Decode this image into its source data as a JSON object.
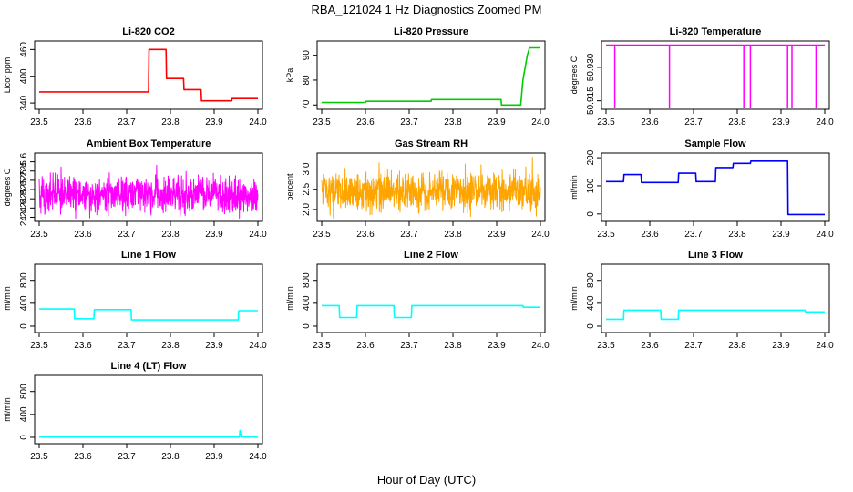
{
  "figure": {
    "title": "RBA_121024  1 Hz Diagnostics Zoomed PM",
    "xlabel": "Hour of Day (UTC)"
  },
  "chart_data": [
    {
      "type": "line",
      "title": "Li-820 CO2",
      "xlabel": "",
      "ylabel": "Licor ppm",
      "color": "#ff0000",
      "xlim": [
        23.5,
        24.0
      ],
      "ylim": [
        330,
        475
      ],
      "xticks": [
        "23.5",
        "23.6",
        "23.7",
        "23.8",
        "23.9",
        "24.0"
      ],
      "yticks": [
        340,
        400,
        460
      ],
      "x": [
        23.5,
        23.75,
        23.751,
        23.79,
        23.791,
        23.83,
        23.831,
        23.87,
        23.871,
        23.94,
        23.941,
        24.0
      ],
      "y": [
        365,
        365,
        460,
        460,
        395,
        395,
        370,
        370,
        345,
        345,
        350,
        350
      ],
      "series": [
        {
          "x": [
            23.5,
            23.75,
            23.751,
            23.79,
            23.791,
            23.83,
            23.831,
            23.87,
            23.871,
            23.94,
            23.941,
            24.0
          ],
          "y": [
            365,
            365,
            460,
            460,
            395,
            395,
            370,
            370,
            345,
            345,
            350,
            350
          ]
        }
      ]
    },
    {
      "type": "line",
      "title": "Li-820 Pressure",
      "xlabel": "",
      "ylabel": "kPa",
      "color": "#00cc00",
      "xlim": [
        23.5,
        24.0
      ],
      "ylim": [
        69,
        95
      ],
      "xticks": [
        "23.5",
        "23.6",
        "23.7",
        "23.8",
        "23.9",
        "24.0"
      ],
      "yticks": [
        70,
        80,
        90
      ],
      "x": [
        23.5,
        23.6,
        23.601,
        23.75,
        23.751,
        23.91,
        23.911,
        23.955,
        23.96,
        23.97,
        23.975,
        24.0
      ],
      "y": [
        71,
        71,
        71.5,
        71.5,
        72.2,
        72.2,
        70,
        70,
        80,
        90,
        93,
        93
      ]
    },
    {
      "type": "line",
      "title": "Li-820 Temperature",
      "xlabel": "",
      "ylabel": "degrees C",
      "color": "#ff00ff",
      "xlim": [
        23.5,
        24.0
      ],
      "ylim": [
        50.912,
        50.941
      ],
      "xticks": [
        "23.5",
        "23.6",
        "23.7",
        "23.8",
        "23.9",
        "24.0"
      ],
      "yticks": [
        50.915,
        50.93
      ],
      "baseline": 50.94,
      "dips": [
        23.52,
        23.645,
        23.815,
        23.83,
        23.915,
        23.925,
        23.98
      ],
      "dip_depth": 50.912
    },
    {
      "type": "line",
      "title": "Ambient Box Temperature",
      "xlabel": "",
      "ylabel": "degrees C",
      "color": "#ff00ff",
      "xlim": [
        23.5,
        24.0
      ],
      "ylim": [
        24.35,
        25.75
      ],
      "xticks": [
        "23.5",
        "23.6",
        "23.7",
        "23.8",
        "23.9",
        "24.0"
      ],
      "yticks": [
        24.4,
        24.6,
        24.8,
        25.0,
        25.2,
        25.4,
        25.6
      ],
      "mean": 24.9,
      "spread": 0.3
    },
    {
      "type": "line",
      "title": "Gas Stream RH",
      "xlabel": "",
      "ylabel": "percent",
      "color": "#ffa500",
      "xlim": [
        23.5,
        24.0
      ],
      "ylim": [
        1.75,
        3.35
      ],
      "xticks": [
        "23.5",
        "23.6",
        "23.7",
        "23.8",
        "23.9",
        "24.0"
      ],
      "yticks": [
        2.0,
        2.5,
        3.0
      ],
      "mean": 2.45,
      "spread": 0.35
    },
    {
      "type": "line",
      "title": "Sample Flow",
      "xlabel": "",
      "ylabel": "ml/min",
      "color": "#0000ff",
      "xlim": [
        23.5,
        24.0
      ],
      "ylim": [
        -20,
        210
      ],
      "xticks": [
        "23.5",
        "23.6",
        "23.7",
        "23.8",
        "23.9",
        "24.0"
      ],
      "yticks": [
        0,
        100,
        200
      ],
      "x": [
        23.5,
        23.54,
        23.541,
        23.58,
        23.581,
        23.665,
        23.666,
        23.705,
        23.706,
        23.75,
        23.751,
        23.79,
        23.791,
        23.83,
        23.831,
        23.915,
        23.916,
        24.0
      ],
      "y": [
        115,
        115,
        140,
        140,
        112,
        112,
        145,
        145,
        115,
        115,
        165,
        165,
        180,
        180,
        188,
        188,
        -2,
        -2
      ]
    },
    {
      "type": "line",
      "title": "Line 1 Flow",
      "xlabel": "",
      "ylabel": "ml/min",
      "color": "#00ffff",
      "xlim": [
        23.5,
        24.0
      ],
      "ylim": [
        -80,
        1050
      ],
      "xticks": [
        "23.5",
        "23.6",
        "23.7",
        "23.8",
        "23.9",
        "24.0"
      ],
      "yticks": [
        0,
        400,
        800
      ],
      "x": [
        23.5,
        23.58,
        23.581,
        23.625,
        23.626,
        23.71,
        23.711,
        23.955,
        23.956,
        24.0
      ],
      "y": [
        300,
        300,
        130,
        130,
        290,
        290,
        110,
        110,
        270,
        270
      ]
    },
    {
      "type": "line",
      "title": "Line 2 Flow",
      "xlabel": "",
      "ylabel": "ml/min",
      "color": "#00ffff",
      "xlim": [
        23.5,
        24.0
      ],
      "ylim": [
        -80,
        1050
      ],
      "xticks": [
        "23.5",
        "23.6",
        "23.7",
        "23.8",
        "23.9",
        "24.0"
      ],
      "yticks": [
        0,
        400,
        800
      ],
      "x": [
        23.5,
        23.54,
        23.541,
        23.58,
        23.581,
        23.665,
        23.666,
        23.705,
        23.706,
        23.96,
        23.961,
        24.0
      ],
      "y": [
        360,
        360,
        150,
        150,
        360,
        360,
        150,
        150,
        360,
        360,
        330,
        330
      ]
    },
    {
      "type": "line",
      "title": "Line 3 Flow",
      "xlabel": "",
      "ylabel": "ml/min",
      "color": "#00ffff",
      "xlim": [
        23.5,
        24.0
      ],
      "ylim": [
        -80,
        1050
      ],
      "xticks": [
        "23.5",
        "23.6",
        "23.7",
        "23.8",
        "23.9",
        "24.0"
      ],
      "yticks": [
        0,
        400,
        800
      ],
      "x": [
        23.5,
        23.54,
        23.541,
        23.625,
        23.626,
        23.665,
        23.666,
        23.955,
        23.956,
        24.0
      ],
      "y": [
        120,
        120,
        280,
        280,
        120,
        120,
        280,
        280,
        250,
        250
      ]
    },
    {
      "type": "line",
      "title": "Line 4 (LT) Flow",
      "xlabel": "",
      "ylabel": "ml/min",
      "color": "#00ffff",
      "xlim": [
        23.5,
        24.0
      ],
      "ylim": [
        -80,
        1050
      ],
      "xticks": [
        "23.5",
        "23.6",
        "23.7",
        "23.8",
        "23.9",
        "24.0"
      ],
      "yticks": [
        0,
        400,
        800
      ],
      "x": [
        23.5,
        23.958,
        23.959,
        23.962,
        23.963,
        24.0
      ],
      "y": [
        5,
        5,
        120,
        5,
        5,
        5
      ]
    }
  ]
}
